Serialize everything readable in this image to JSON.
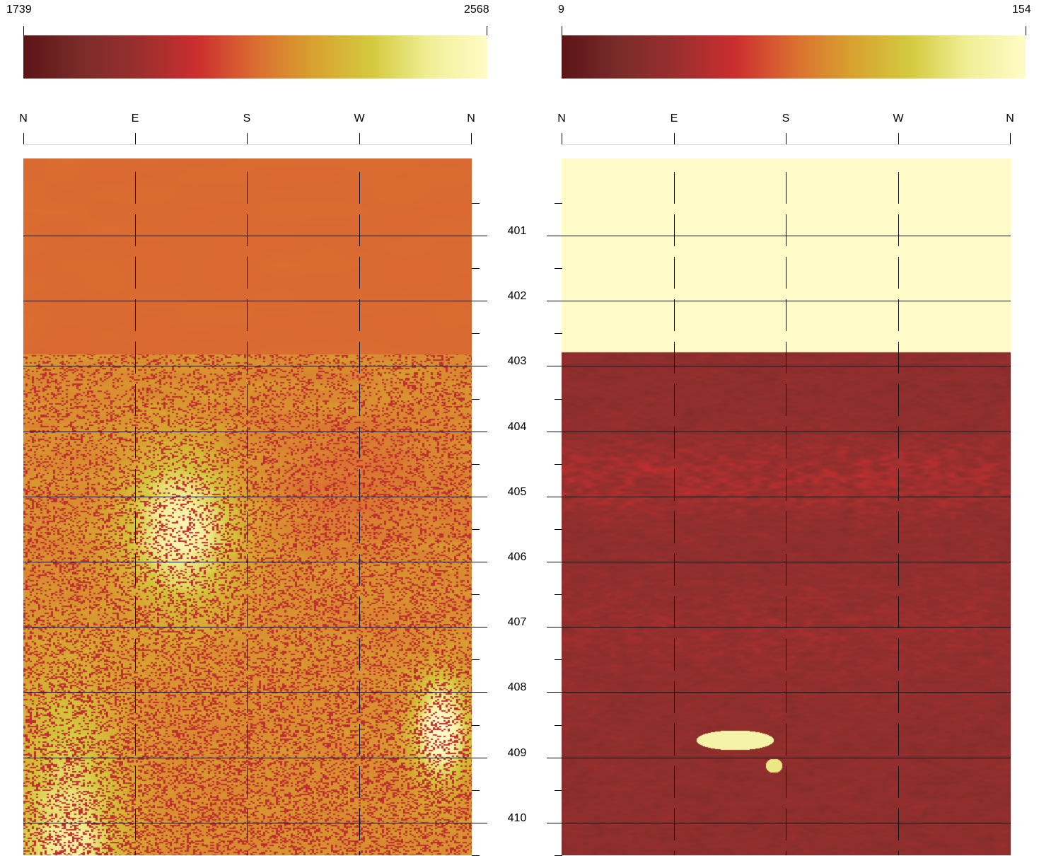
{
  "left_panel": {
    "scale_min": "1739",
    "scale_max": "2568",
    "compass": [
      "N",
      "E",
      "S",
      "W",
      "N"
    ]
  },
  "right_panel": {
    "scale_min": "9",
    "scale_max": "154",
    "compass": [
      "N",
      "E",
      "S",
      "W",
      "N"
    ]
  },
  "depth_labels": [
    "401",
    "402",
    "403",
    "404",
    "405",
    "406",
    "407",
    "408",
    "409",
    "410"
  ],
  "colors": {
    "colormap": [
      "#5c1416",
      "#7a2c2a",
      "#9a2f2e",
      "#cc2e2f",
      "#da6d31",
      "#d8a130",
      "#d4c93e",
      "#f0ef96",
      "#fffbc8"
    ],
    "grid": "#000000",
    "background": "#ffffff"
  }
}
